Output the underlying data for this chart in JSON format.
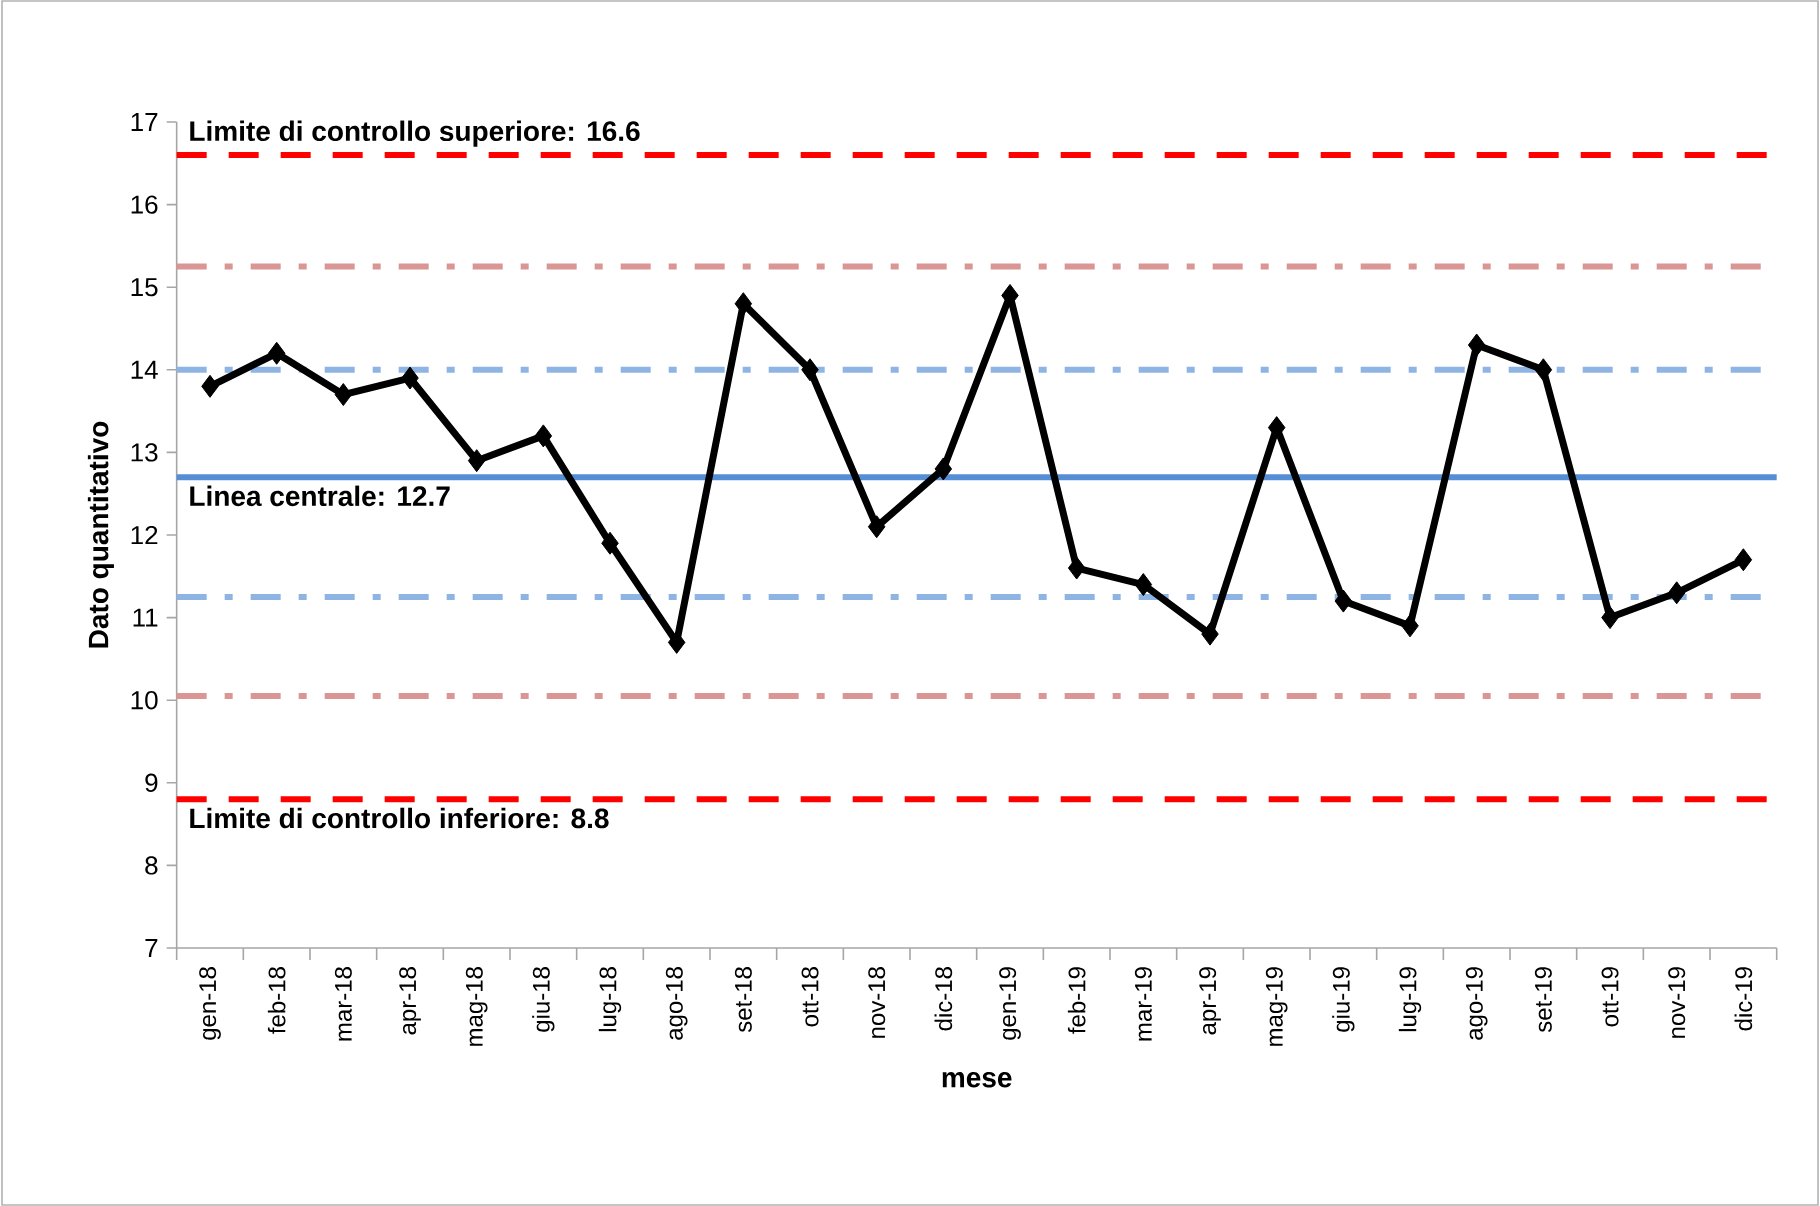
{
  "chart_data": {
    "type": "line",
    "xlabel": "mese",
    "ylabel": "Dato quantitativo",
    "categories": [
      "gen-18",
      "feb-18",
      "mar-18",
      "apr-18",
      "mag-18",
      "giu-18",
      "lug-18",
      "ago-18",
      "set-18",
      "ott-18",
      "nov-18",
      "dic-18",
      "gen-19",
      "feb-19",
      "mar-19",
      "apr-19",
      "mag-19",
      "giu-19",
      "lug-19",
      "ago-19",
      "set-19",
      "ott-19",
      "nov-19",
      "dic-19"
    ],
    "series": [
      {
        "color": "#000000",
        "values": [
          13.8,
          14.2,
          13.7,
          13.9,
          12.9,
          13.2,
          11.9,
          10.7,
          14.8,
          14.0,
          12.1,
          12.8,
          14.9,
          11.6,
          11.4,
          10.8,
          13.3,
          11.2,
          10.9,
          14.3,
          14.0,
          11.0,
          11.3,
          11.7
        ]
      }
    ],
    "ylim": [
      7,
      17
    ],
    "yticks": [
      7,
      8,
      9,
      10,
      11,
      12,
      13,
      14,
      15,
      16,
      17
    ],
    "marker": "diamond",
    "line_style": "solid",
    "grid": false,
    "ref_lines": [
      {
        "axis": "y",
        "value": 16.6,
        "label": "Limite di controllo superiore: 16.6",
        "color": "#ff0000",
        "line_style": "dashed"
      },
      {
        "axis": "y",
        "value": 15.25,
        "color": "#d99694",
        "line_style": "dashdot"
      },
      {
        "axis": "y",
        "value": 14.0,
        "color": "#8eb4e3",
        "line_style": "dashdot"
      },
      {
        "axis": "y",
        "value": 12.7,
        "label": "Linea centrale: 12.7",
        "color": "#558ed5",
        "line_style": "solid"
      },
      {
        "axis": "y",
        "value": 11.25,
        "color": "#8eb4e3",
        "line_style": "dashdot"
      },
      {
        "axis": "y",
        "value": 10.05,
        "color": "#d99694",
        "line_style": "dashdot"
      },
      {
        "axis": "y",
        "value": 8.8,
        "label": "Limite di controllo inferiore: 8.8",
        "color": "#ff0000",
        "line_style": "dashed"
      }
    ]
  }
}
